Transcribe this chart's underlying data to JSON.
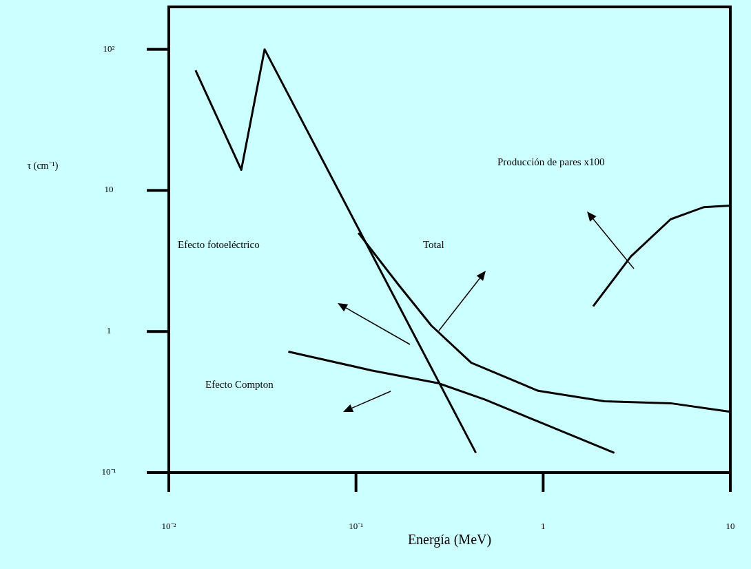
{
  "chart_data": {
    "type": "line",
    "xlabel": "Energía (MeV)",
    "ylabel": "τ (cm⁻¹)",
    "log": "xy",
    "marker": "none",
    "line_style": "solid",
    "xlim": [
      0.01,
      10
    ],
    "ylim": [
      0.1,
      200
    ],
    "xticks": [
      {
        "value": 0.01,
        "label": "10⁻²"
      },
      {
        "value": 0.1,
        "label": "10⁻¹"
      },
      1,
      10
    ],
    "yticks": [
      {
        "value": 0.1,
        "label": "10⁻¹"
      },
      1,
      10,
      {
        "value": 100,
        "label": "10²"
      }
    ],
    "series": [
      {
        "color": "#000000",
        "x": [
          0.0139,
          0.0244,
          0.0325,
          0.437
        ],
        "values": [
          71,
          14,
          100,
          0.138
        ]
      },
      {
        "color": "#000000",
        "x": [
          0.103,
          0.168,
          0.253,
          0.413,
          0.94,
          2.12,
          4.8,
          10
        ],
        "values": [
          5.0,
          2.16,
          1.1,
          0.6,
          0.38,
          0.32,
          0.31,
          0.27
        ]
      },
      {
        "color": "#000000",
        "x": [
          0.0435,
          0.121,
          0.275,
          0.487,
          0.94,
          2.4
        ],
        "values": [
          0.72,
          0.53,
          0.43,
          0.33,
          0.23,
          0.138
        ]
      },
      {
        "color": "#000000",
        "x": [
          1.85,
          2.94,
          4.8,
          7.2,
          10
        ],
        "values": [
          1.51,
          3.4,
          6.25,
          7.6,
          7.8
        ]
      }
    ],
    "annotations": [
      "Efecto fotoeléctrico",
      "Total",
      "Producción de pares x100",
      "Efecto Compton"
    ]
  }
}
